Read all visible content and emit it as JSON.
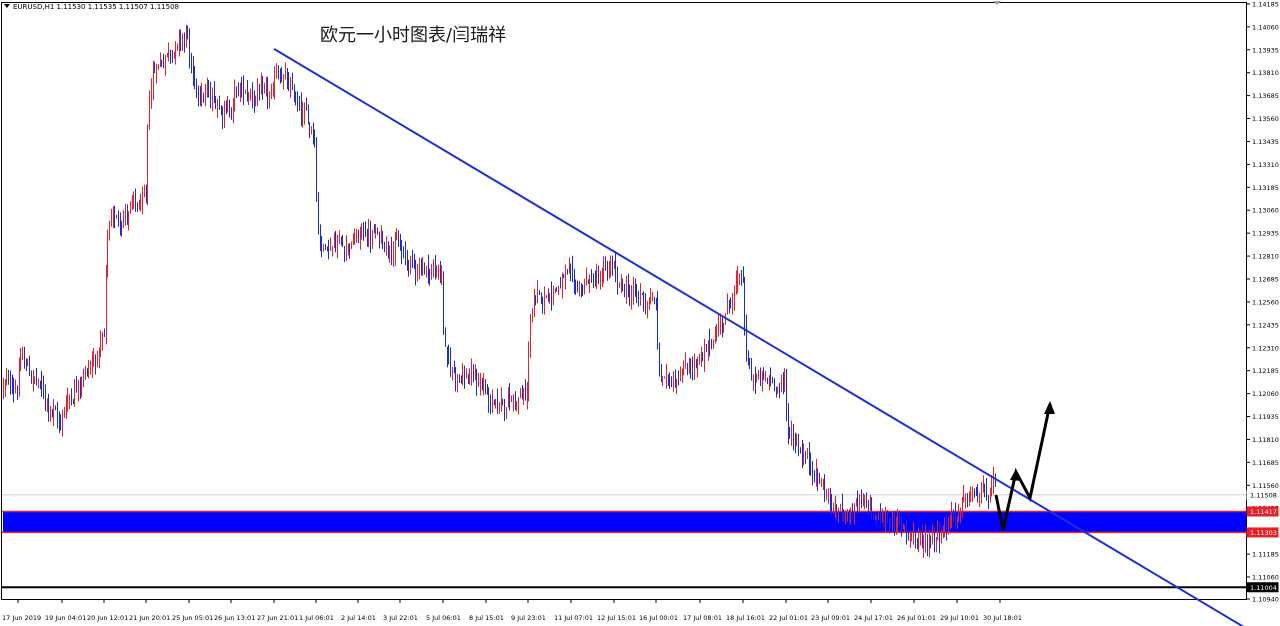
{
  "symbol_info": "EURUSD,H1  1.11530 1.11535 1.11507 1.11508",
  "colors": {
    "bull": "#e8202a",
    "bear": "#1c2bd8",
    "trendline": "#1f2fd6",
    "support_zone": "#0000ff",
    "support_border": "#e8202a",
    "arrow": "#000000",
    "current_price_line": "#c0c0c0"
  },
  "chart_data": {
    "type": "candlestick",
    "title": "欧元一小时图表/闫瑞祥",
    "symbol": "EURUSD",
    "timeframe": "H1",
    "ylim": [
      1.1094,
      1.1419
    ],
    "y_ticks": [
      "1.14185",
      "1.14060",
      "1.13935",
      "1.13810",
      "1.13685",
      "1.13560",
      "1.13435",
      "1.13310",
      "1.13185",
      "1.13060",
      "1.12935",
      "1.12810",
      "1.12685",
      "1.12560",
      "1.12435",
      "1.12310",
      "1.12185",
      "1.12060",
      "1.11935",
      "1.11810",
      "1.11685",
      "1.11560",
      "1.11435",
      "1.11310",
      "1.11185",
      "1.11060",
      "1.10940"
    ],
    "x_ticks": [
      "17 Jun 2019",
      "19 Jun 04:01",
      "20 Jun 12:01",
      "21 Jun 20:01",
      "25 Jun 05:01",
      "26 Jun 13:01",
      "27 Jun 21:01",
      "1 Jul 06:01",
      "2 Jul 14:01",
      "3 Jul 22:01",
      "5 Jul 06:01",
      "8 Jul 15:01",
      "9 Jul 23:01",
      "11 Jul 07:01",
      "12 Jul 15:01",
      "16 Jul 00:01",
      "17 Jul 08:01",
      "18 Jul 16:01",
      "22 Jul 01:01",
      "23 Jul 09:01",
      "24 Jul 17:01",
      "26 Jul 01:01",
      "29 Jul 10:01",
      "30 Jul 18:01"
    ],
    "path_points": [
      {
        "x": "17 Jun 2019",
        "y": 1.121
      },
      {
        "x": "17 Jun 2019",
        "y": 1.1228
      },
      {
        "x": "19 Jun 04:01",
        "y": 1.1185
      },
      {
        "x": "19 Jun 04:01",
        "y": 1.12
      },
      {
        "x": "20 Jun 12:01",
        "y": 1.1235
      },
      {
        "x": "20 Jun 12:01",
        "y": 1.13
      },
      {
        "x": "21 Jun 20:01",
        "y": 1.131
      },
      {
        "x": "21 Jun 20:01",
        "y": 1.138
      },
      {
        "x": "25 Jun 05:01",
        "y": 1.1405
      },
      {
        "x": "25 Jun 05:01",
        "y": 1.1375
      },
      {
        "x": "26 Jun 13:01",
        "y": 1.136
      },
      {
        "x": "26 Jun 13:01",
        "y": 1.1372
      },
      {
        "x": "27 Jun 21:01",
        "y": 1.1367
      },
      {
        "x": "27 Jun 21:01",
        "y": 1.1385
      },
      {
        "x": "1 Jul 06:01",
        "y": 1.1345
      },
      {
        "x": "1 Jul 06:01",
        "y": 1.1285
      },
      {
        "x": "2 Jul 14:01",
        "y": 1.129
      },
      {
        "x": "2 Jul 14:01",
        "y": 1.1295
      },
      {
        "x": "3 Jul 22:01",
        "y": 1.1285
      },
      {
        "x": "3 Jul 22:01",
        "y": 1.128
      },
      {
        "x": "5 Jul 06:01",
        "y": 1.127
      },
      {
        "x": "5 Jul 06:01",
        "y": 1.122
      },
      {
        "x": "8 Jul 15:01",
        "y": 1.121
      },
      {
        "x": "8 Jul 15:01",
        "y": 1.12
      },
      {
        "x": "9 Jul 23:01",
        "y": 1.1205
      },
      {
        "x": "9 Jul 23:01",
        "y": 1.1255
      },
      {
        "x": "11 Jul 07:01",
        "y": 1.127
      },
      {
        "x": "11 Jul 07:01",
        "y": 1.1262
      },
      {
        "x": "12 Jul 15:01",
        "y": 1.1275
      },
      {
        "x": "12 Jul 15:01",
        "y": 1.1265
      },
      {
        "x": "16 Jul 00:01",
        "y": 1.1255
      },
      {
        "x": "16 Jul 00:01",
        "y": 1.121
      },
      {
        "x": "17 Jul 08:01",
        "y": 1.1225
      },
      {
        "x": "17 Jul 08:01",
        "y": 1.1222
      },
      {
        "x": "18 Jul 16:01",
        "y": 1.1275
      },
      {
        "x": "18 Jul 16:01",
        "y": 1.1215
      },
      {
        "x": "22 Jul 01:01",
        "y": 1.121
      },
      {
        "x": "22 Jul 01:01",
        "y": 1.1185
      },
      {
        "x": "23 Jul 09:01",
        "y": 1.115
      },
      {
        "x": "23 Jul 09:01",
        "y": 1.114
      },
      {
        "x": "24 Jul 17:01",
        "y": 1.1145
      },
      {
        "x": "24 Jul 17:01",
        "y": 1.114
      },
      {
        "x": "26 Jul 01:01",
        "y": 1.113
      },
      {
        "x": "26 Jul 01:01",
        "y": 1.112
      },
      {
        "x": "29 Jul 10:01",
        "y": 1.114
      },
      {
        "x": "29 Jul 10:01",
        "y": 1.1145
      },
      {
        "x": "30 Jul 18:01",
        "y": 1.1158
      },
      {
        "x": "30 Jul 18:01",
        "y": 1.1152
      }
    ],
    "trendline": [
      {
        "x": "27 Jun 21:01",
        "y": 1.1394
      },
      {
        "x": "30 Jul 18:01",
        "y": 1.1158
      }
    ],
    "support_zone": {
      "low": 1.11303,
      "high": 1.11417
    },
    "current_price": "1.11508",
    "price_labels": {
      "zone_high": "1.11417",
      "zone_low": "1.11303",
      "low_line": "1.11004"
    }
  }
}
